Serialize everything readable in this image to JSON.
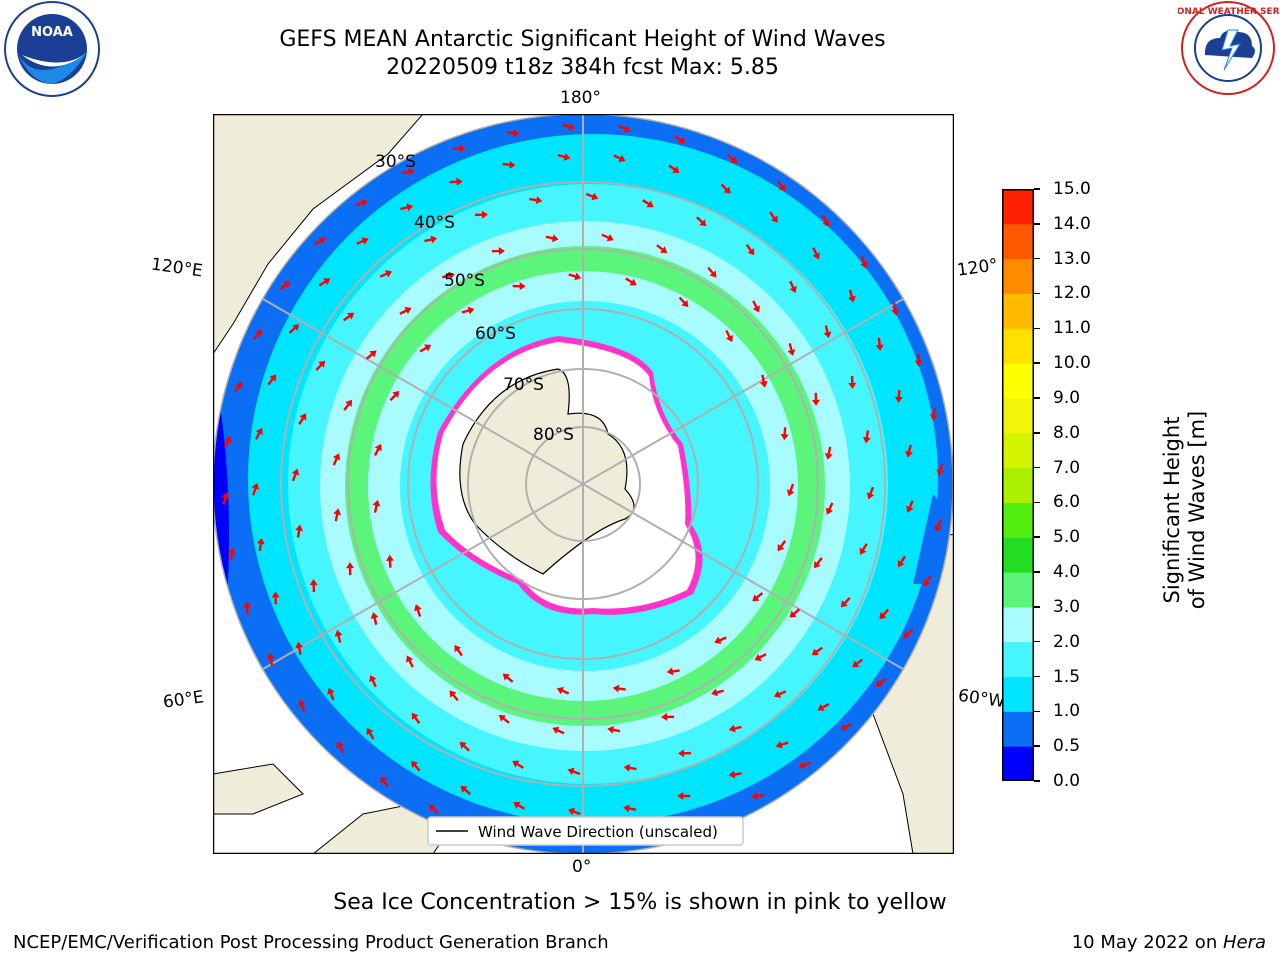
{
  "title": {
    "line1": "GEFS MEAN Antarctic Significant Height of Wind Waves",
    "line2": "20220509 t18z 384h fcst   Max: 5.85"
  },
  "map": {
    "projection": "south-polar-stereographic",
    "longitude_labels": {
      "top": "180°",
      "bottom": "0°",
      "upper_left": "120°E",
      "upper_right": "120°",
      "lower_left": "60°E",
      "lower_right": "60°W"
    },
    "latitude_labels": [
      "30°S",
      "40°S",
      "50°S",
      "60°S",
      "70°S",
      "80°S"
    ],
    "legend": "Wind Wave Direction (unscaled)",
    "colors": {
      "land": "#efedd9",
      "ice": "#ffffff",
      "grid": "#b0b0b0",
      "arrow": "#ff0000",
      "sea_ice_edge": "#ff33cc"
    }
  },
  "colorbar": {
    "label": "Significant Height of Wind Waves [m]",
    "ticks": [
      "0.0",
      "0.5",
      "1.0",
      "1.5",
      "2.0",
      "3.0",
      "4.0",
      "5.0",
      "6.0",
      "7.0",
      "8.0",
      "9.0",
      "10.0",
      "11.0",
      "12.0",
      "13.0",
      "14.0",
      "15.0"
    ],
    "colors": [
      "#0000ff",
      "#0a6ff5",
      "#00e5ff",
      "#45f5ff",
      "#a8fbff",
      "#5af57a",
      "#22dd22",
      "#55ee11",
      "#aaf000",
      "#d4f500",
      "#f0f50a",
      "#ffff00",
      "#ffe100",
      "#ffbb00",
      "#ff8c00",
      "#ff5a00",
      "#ff2000"
    ]
  },
  "caption": "Sea Ice Concentration > 15% is shown in pink to yellow",
  "footer": {
    "left": "NCEP/EMC/Verification Post Processing Product Generation Branch",
    "right_prefix": "10 May 2022 on ",
    "right_host": "Hera"
  },
  "logos": {
    "left": "NOAA",
    "right": "NATIONAL WEATHER SERVICE"
  }
}
